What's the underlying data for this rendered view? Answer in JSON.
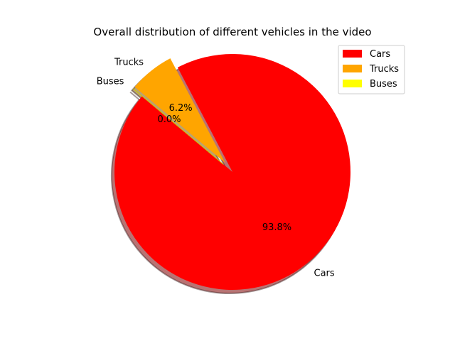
{
  "chart_data": {
    "type": "pie",
    "title": "Overall distribution of different vehicles in the video",
    "legend_position": "top-right",
    "slices": [
      {
        "label": "Cars",
        "value": 93.8,
        "pct_label": "93.8%",
        "color": "#ff0000",
        "explode": 0.0
      },
      {
        "label": "Trucks",
        "value": 6.2,
        "pct_label": "6.2%",
        "color": "#ffa500",
        "explode": 0.1
      },
      {
        "label": "Buses",
        "value": 0.0,
        "pct_label": "0.0%",
        "color": "#ffff00",
        "explode": 0.1
      }
    ],
    "start_angle_deg": 140,
    "shadow": true
  }
}
